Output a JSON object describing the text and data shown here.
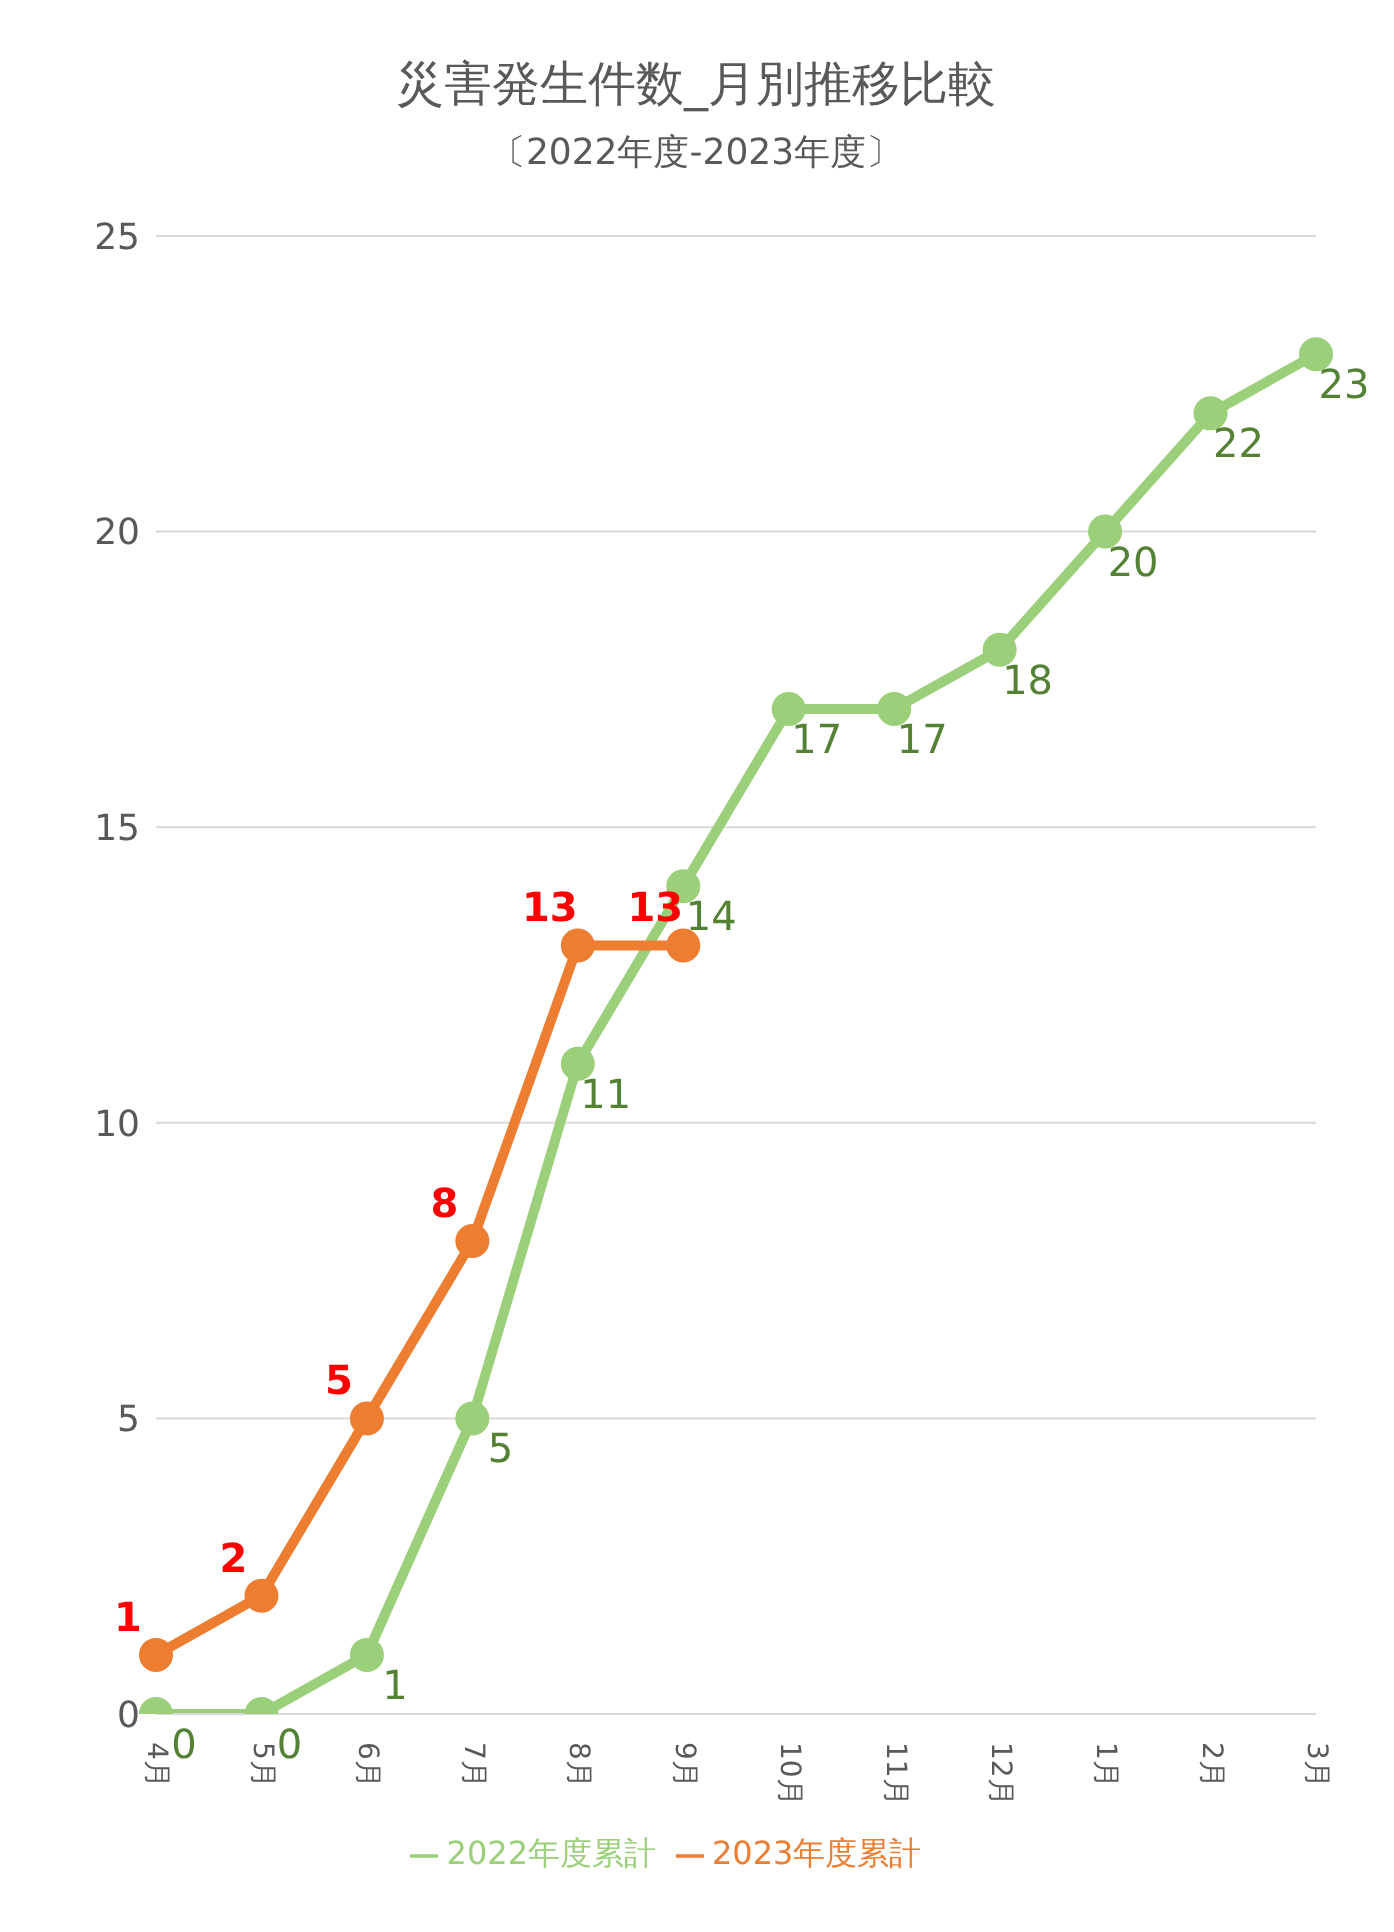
{
  "chart_data": {
    "type": "line",
    "title": "災害発生件数_月別推移比較",
    "subtitle": "〔2022年度-2023年度〕",
    "categories": [
      "4月",
      "5月",
      "6月",
      "7月",
      "8月",
      "9月",
      "10月",
      "11月",
      "12月",
      "1月",
      "2月",
      "3月"
    ],
    "series": [
      {
        "name": "2022年度累計",
        "color": "#9bcf7a",
        "values": [
          0,
          0,
          1,
          5,
          11,
          14,
          17,
          17,
          18,
          20,
          22,
          23
        ]
      },
      {
        "name": "2023年度累計",
        "color": "#ed7d31",
        "values": [
          1,
          2,
          5,
          8,
          13,
          13,
          null,
          null,
          null,
          null,
          null,
          null
        ]
      }
    ],
    "ylim": [
      0,
      25
    ],
    "yticks": [
      0,
      5,
      10,
      15,
      20,
      25
    ],
    "grid": "y",
    "legend": "bottom",
    "marker": "circle",
    "line_style": "solid",
    "data_labels": true
  }
}
